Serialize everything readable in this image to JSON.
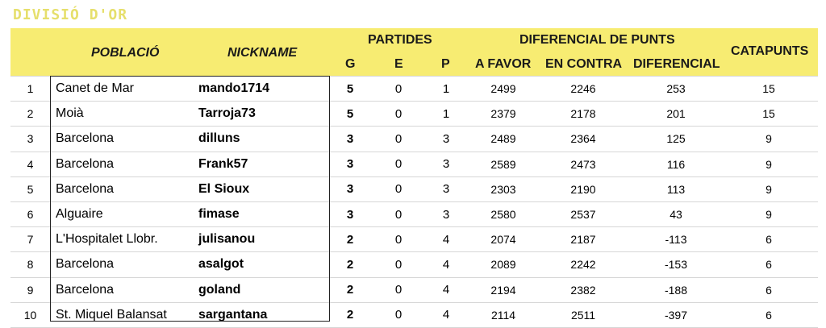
{
  "title": "DIVISIÓ D'OR",
  "headers": {
    "poblacio": "POBLACIÓ",
    "nickname": "NICKNAME",
    "partides": "PARTIDES",
    "g": "G",
    "e": "E",
    "p": "P",
    "diferencial_de_punts": "DIFERENCIAL DE PUNTS",
    "a_favor": "A FAVOR",
    "en_contra": "EN CONTRA",
    "diferencial": "DIFERENCIAL",
    "catapunts": "CATAPUNTS"
  },
  "rows": [
    {
      "rank": "1",
      "poblacio": "Canet de Mar",
      "nickname": "mando1714",
      "g": "5",
      "e": "0",
      "p": "1",
      "a_favor": "2499",
      "en_contra": "2246",
      "diferencial": "253",
      "catapunts": "15"
    },
    {
      "rank": "2",
      "poblacio": "Moià",
      "nickname": "Tarroja73",
      "g": "5",
      "e": "0",
      "p": "1",
      "a_favor": "2379",
      "en_contra": "2178",
      "diferencial": "201",
      "catapunts": "15"
    },
    {
      "rank": "3",
      "poblacio": "Barcelona",
      "nickname": "dilluns",
      "g": "3",
      "e": "0",
      "p": "3",
      "a_favor": "2489",
      "en_contra": "2364",
      "diferencial": "125",
      "catapunts": "9"
    },
    {
      "rank": "4",
      "poblacio": "Barcelona",
      "nickname": "Frank57",
      "g": "3",
      "e": "0",
      "p": "3",
      "a_favor": "2589",
      "en_contra": "2473",
      "diferencial": "116",
      "catapunts": "9"
    },
    {
      "rank": "5",
      "poblacio": "Barcelona",
      "nickname": "El Sioux",
      "g": "3",
      "e": "0",
      "p": "3",
      "a_favor": "2303",
      "en_contra": "2190",
      "diferencial": "113",
      "catapunts": "9"
    },
    {
      "rank": "6",
      "poblacio": "Alguaire",
      "nickname": "fimase",
      "g": "3",
      "e": "0",
      "p": "3",
      "a_favor": "2580",
      "en_contra": "2537",
      "diferencial": "43",
      "catapunts": "9"
    },
    {
      "rank": "7",
      "poblacio": "L'Hospitalet Llobr.",
      "nickname": "julisanou",
      "g": "2",
      "e": "0",
      "p": "4",
      "a_favor": "2074",
      "en_contra": "2187",
      "diferencial": "-113",
      "catapunts": "6"
    },
    {
      "rank": "8",
      "poblacio": "Barcelona",
      "nickname": "asalgot",
      "g": "2",
      "e": "0",
      "p": "4",
      "a_favor": "2089",
      "en_contra": "2242",
      "diferencial": "-153",
      "catapunts": "6"
    },
    {
      "rank": "9",
      "poblacio": "Barcelona",
      "nickname": "goland",
      "g": "2",
      "e": "0",
      "p": "4",
      "a_favor": "2194",
      "en_contra": "2382",
      "diferencial": "-188",
      "catapunts": "6"
    },
    {
      "rank": "10",
      "poblacio": "St. Miquel Balansat",
      "nickname": "sargantana",
      "g": "2",
      "e": "0",
      "p": "4",
      "a_favor": "2114",
      "en_contra": "2511",
      "diferencial": "-397",
      "catapunts": "6"
    }
  ],
  "colors": {
    "header_bg": "#f7ec72",
    "title_color": "#e6df6c"
  }
}
